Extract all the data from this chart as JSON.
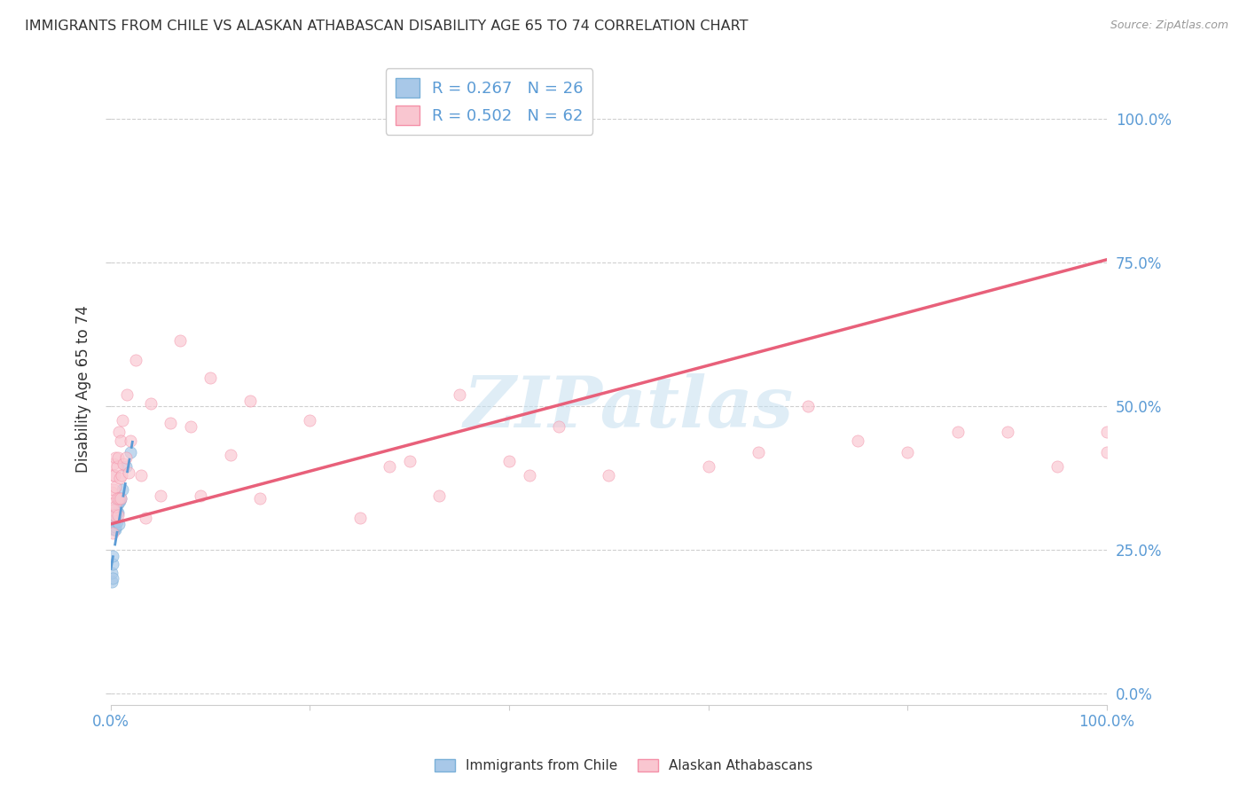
{
  "title": "IMMIGRANTS FROM CHILE VS ALASKAN ATHABASCAN DISABILITY AGE 65 TO 74 CORRELATION CHART",
  "source": "Source: ZipAtlas.com",
  "ylabel": "Disability Age 65 to 74",
  "ytick_labels": [
    "0.0%",
    "25.0%",
    "50.0%",
    "75.0%",
    "100.0%"
  ],
  "ytick_positions": [
    0.0,
    0.25,
    0.5,
    0.75,
    1.0
  ],
  "xtick_positions": [
    0.0,
    0.2,
    0.4,
    0.6,
    0.8,
    1.0
  ],
  "legend1_label": "R = 0.267   N = 26",
  "legend2_label": "R = 0.502   N = 62",
  "watermark": "ZIPatlas",
  "background_color": "#ffffff",
  "chile_scatter_x": [
    0.001,
    0.001,
    0.002,
    0.002,
    0.002,
    0.003,
    0.003,
    0.003,
    0.003,
    0.004,
    0.004,
    0.004,
    0.005,
    0.005,
    0.005,
    0.006,
    0.006,
    0.007,
    0.007,
    0.008,
    0.008,
    0.009,
    0.01,
    0.012,
    0.015,
    0.02
  ],
  "chile_scatter_y": [
    0.195,
    0.21,
    0.2,
    0.225,
    0.24,
    0.285,
    0.29,
    0.295,
    0.3,
    0.285,
    0.3,
    0.315,
    0.285,
    0.29,
    0.31,
    0.3,
    0.315,
    0.315,
    0.33,
    0.295,
    0.335,
    0.335,
    0.34,
    0.355,
    0.395,
    0.42
  ],
  "chile_line_x": [
    0.0,
    0.022
  ],
  "chile_line_y": [
    0.215,
    0.44
  ],
  "alaska_scatter_x": [
    0.001,
    0.001,
    0.002,
    0.002,
    0.002,
    0.003,
    0.003,
    0.003,
    0.004,
    0.004,
    0.005,
    0.005,
    0.005,
    0.006,
    0.006,
    0.007,
    0.007,
    0.008,
    0.008,
    0.009,
    0.01,
    0.01,
    0.011,
    0.012,
    0.013,
    0.015,
    0.016,
    0.018,
    0.02,
    0.025,
    0.03,
    0.035,
    0.04,
    0.05,
    0.06,
    0.07,
    0.08,
    0.09,
    0.1,
    0.12,
    0.14,
    0.15,
    0.2,
    0.25,
    0.28,
    0.3,
    0.33,
    0.35,
    0.4,
    0.42,
    0.45,
    0.5,
    0.6,
    0.65,
    0.7,
    0.75,
    0.8,
    0.85,
    0.9,
    0.95,
    1.0,
    1.0
  ],
  "alaska_scatter_y": [
    0.305,
    0.35,
    0.28,
    0.33,
    0.38,
    0.32,
    0.355,
    0.4,
    0.31,
    0.38,
    0.325,
    0.36,
    0.41,
    0.34,
    0.395,
    0.31,
    0.41,
    0.34,
    0.455,
    0.375,
    0.34,
    0.44,
    0.38,
    0.475,
    0.4,
    0.41,
    0.52,
    0.385,
    0.44,
    0.58,
    0.38,
    0.305,
    0.505,
    0.345,
    0.47,
    0.615,
    0.465,
    0.345,
    0.55,
    0.415,
    0.51,
    0.34,
    0.475,
    0.305,
    0.395,
    0.405,
    0.345,
    0.52,
    0.405,
    0.38,
    0.465,
    0.38,
    0.395,
    0.42,
    0.5,
    0.44,
    0.42,
    0.455,
    0.455,
    0.395,
    0.42,
    0.455
  ],
  "alaska_line_x": [
    0.0,
    1.0
  ],
  "alaska_line_y": [
    0.295,
    0.755
  ]
}
